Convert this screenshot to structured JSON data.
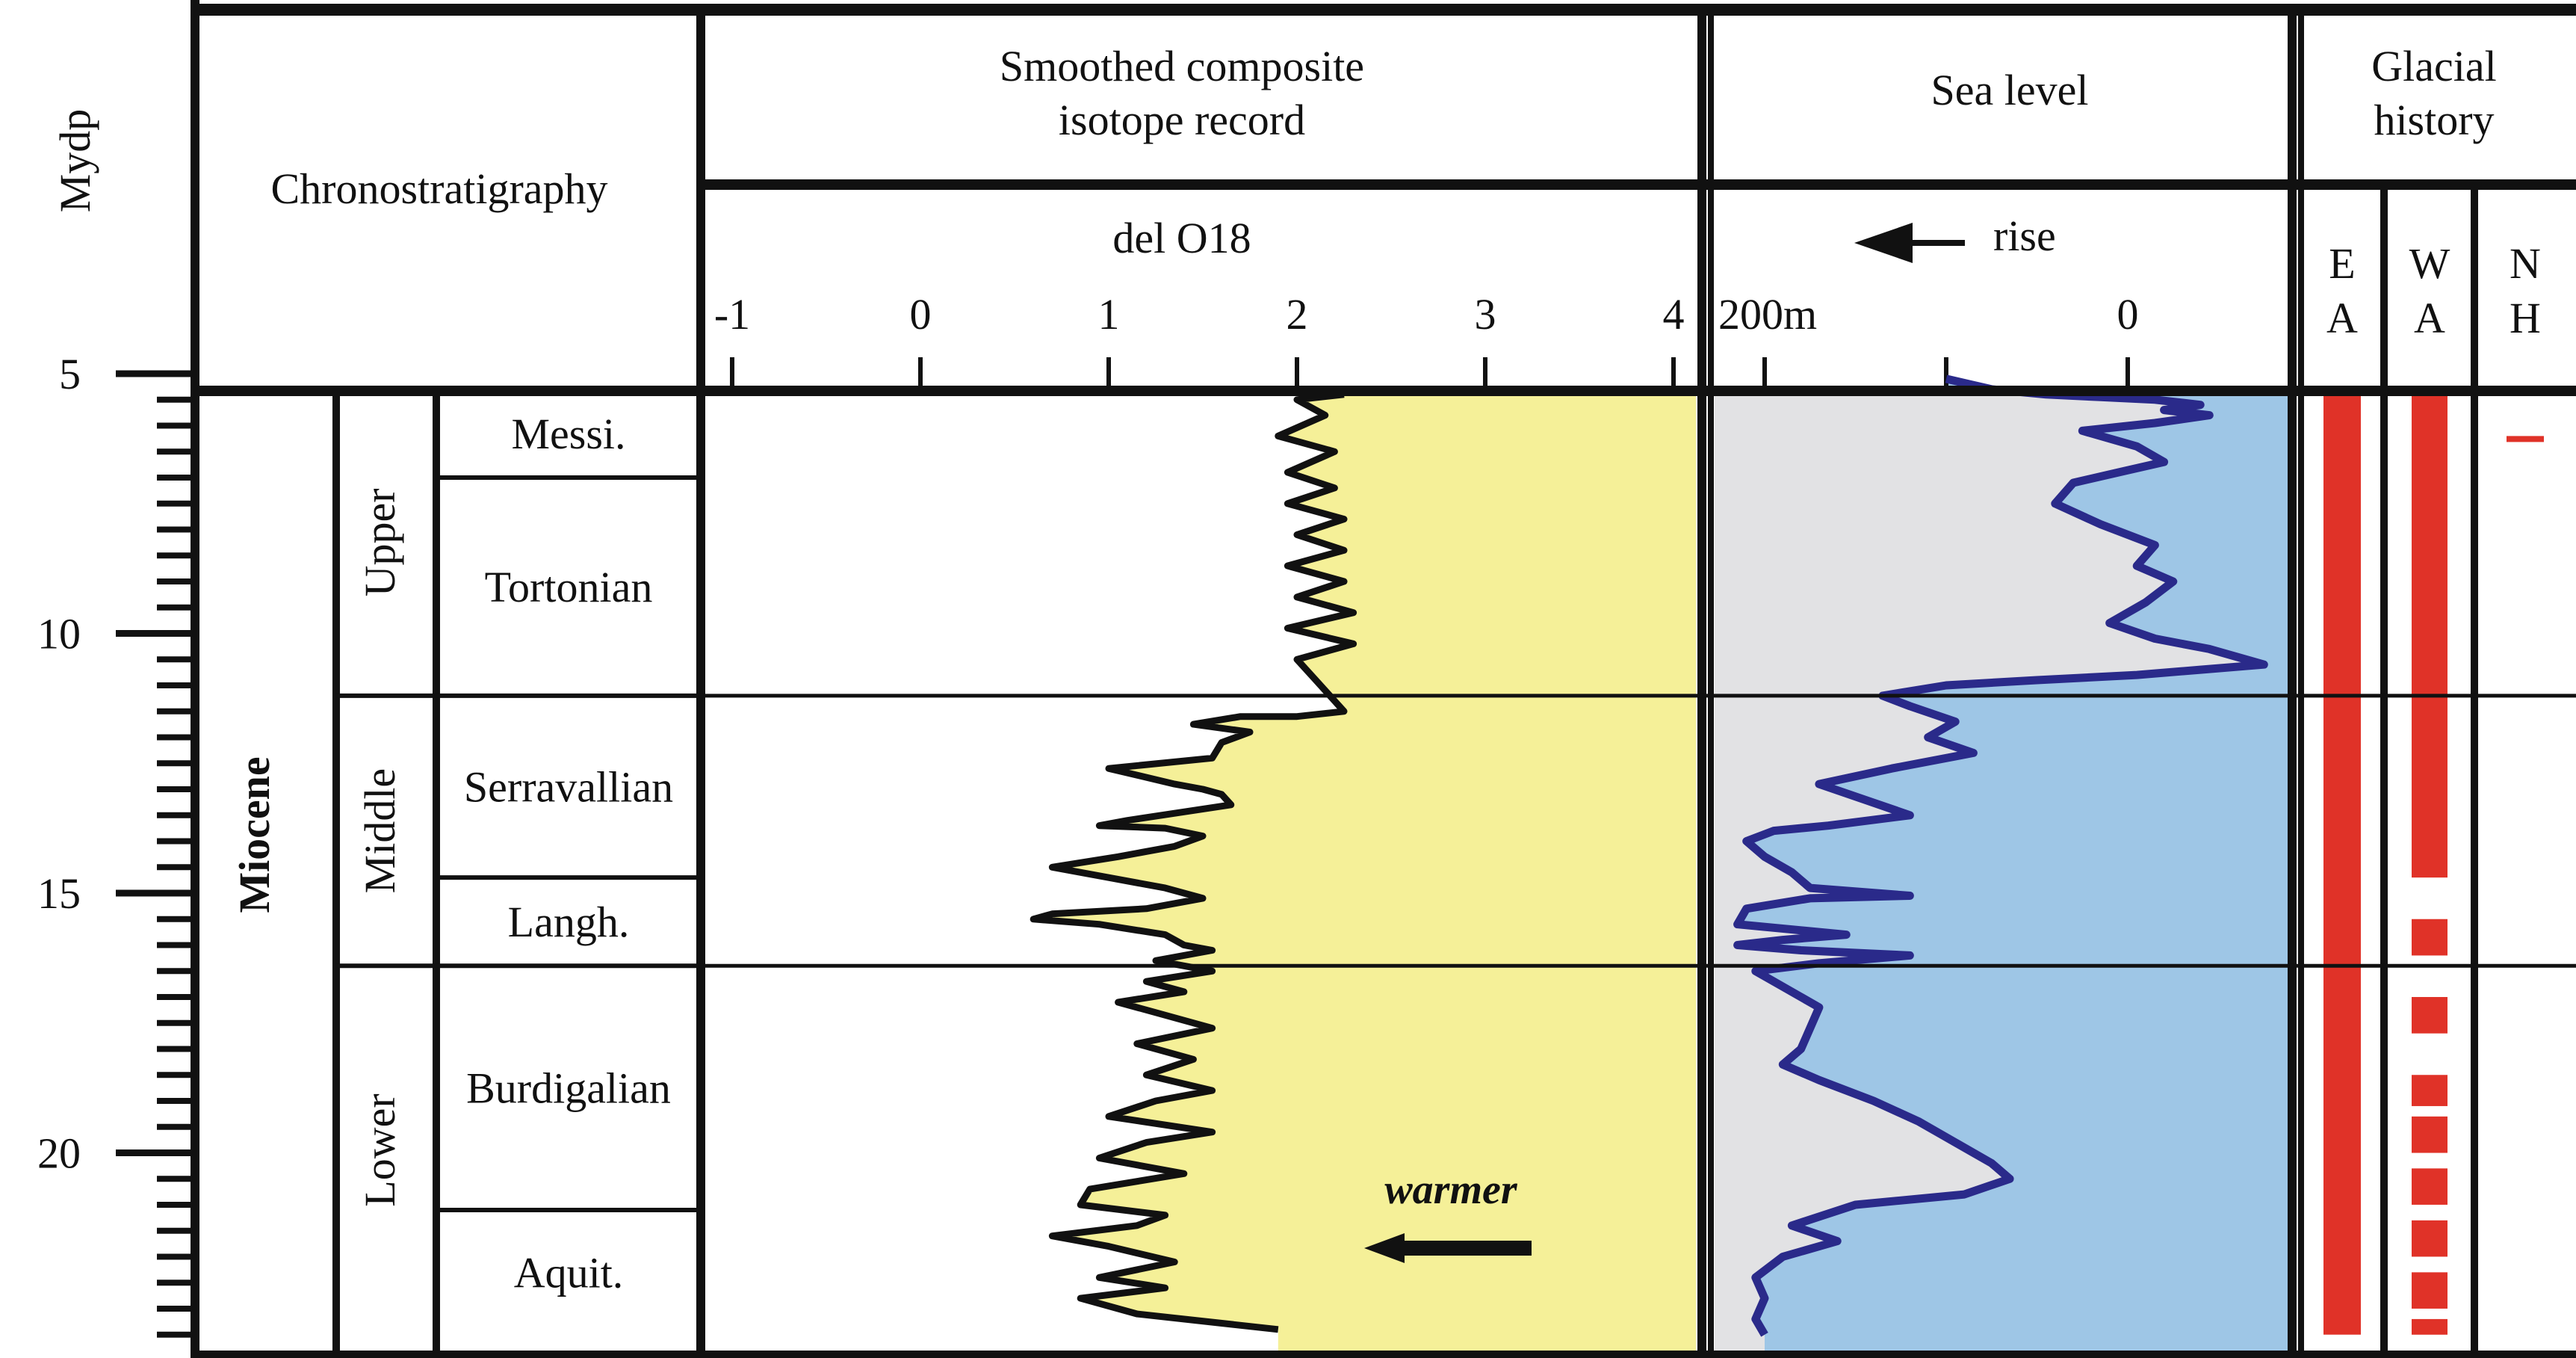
{
  "chart_data": {
    "type": "stratigraphic-composite",
    "y_axis": {
      "label": "Mydp",
      "ticks": [
        5,
        10,
        15,
        20
      ],
      "range": [
        5,
        23.5
      ]
    },
    "columns": {
      "chronostratigraphy": {
        "header": "Chronostratigraphy",
        "epoch": "Miocene",
        "subepochs": [
          {
            "name": "Upper",
            "from": 5.3,
            "to": 11.2
          },
          {
            "name": "Middle",
            "from": 11.2,
            "to": 16.4
          },
          {
            "name": "Lower",
            "from": 16.4,
            "to": 23.5
          }
        ],
        "stages": [
          {
            "name": "Messi.",
            "from": 5.3,
            "to": 7.0
          },
          {
            "name": "Tortonian",
            "from": 7.0,
            "to": 11.2
          },
          {
            "name": "Serravallian",
            "from": 11.2,
            "to": 14.7
          },
          {
            "name": "Langh.",
            "from": 14.7,
            "to": 16.4
          },
          {
            "name": "Burdigalian",
            "from": 16.4,
            "to": 21.1
          },
          {
            "name": "Aquit.",
            "from": 21.1,
            "to": 23.5
          }
        ]
      },
      "isotope": {
        "header_line1": "Smoothed composite",
        "header_line2": "isotope record",
        "axis_label": "del O18",
        "ticks": [
          -1,
          0,
          1,
          2,
          3,
          4
        ],
        "range": [
          -1,
          4
        ],
        "annotation": "warmer",
        "fill_color": "#f5f098",
        "series": [
          {
            "points": [
              [
                2.25,
                5.4
              ],
              [
                2.0,
                5.5
              ],
              [
                2.15,
                5.8
              ],
              [
                1.9,
                6.2
              ],
              [
                2.2,
                6.5
              ],
              [
                1.95,
                6.9
              ],
              [
                2.2,
                7.2
              ],
              [
                1.95,
                7.5
              ],
              [
                2.25,
                7.8
              ],
              [
                2.0,
                8.1
              ],
              [
                2.25,
                8.4
              ],
              [
                1.95,
                8.7
              ],
              [
                2.25,
                9.0
              ],
              [
                2.0,
                9.3
              ],
              [
                2.3,
                9.6
              ],
              [
                1.95,
                9.9
              ],
              [
                2.3,
                10.2
              ],
              [
                2.0,
                10.5
              ],
              [
                2.1,
                10.9
              ],
              [
                2.25,
                11.5
              ],
              [
                2.0,
                11.6
              ],
              [
                1.7,
                11.6
              ],
              [
                1.45,
                11.75
              ],
              [
                1.75,
                11.9
              ],
              [
                1.6,
                12.1
              ],
              [
                1.55,
                12.4
              ],
              [
                1.0,
                12.6
              ],
              [
                1.35,
                12.9
              ],
              [
                1.5,
                13.0
              ],
              [
                1.6,
                13.1
              ],
              [
                1.65,
                13.3
              ],
              [
                1.1,
                13.6
              ],
              [
                0.95,
                13.7
              ],
              [
                1.3,
                13.75
              ],
              [
                1.5,
                13.9
              ],
              [
                1.35,
                14.1
              ],
              [
                1.05,
                14.3
              ],
              [
                0.7,
                14.5
              ],
              [
                1.0,
                14.7
              ],
              [
                1.3,
                14.9
              ],
              [
                1.5,
                15.1
              ],
              [
                1.2,
                15.3
              ],
              [
                0.7,
                15.4
              ],
              [
                0.6,
                15.5
              ],
              [
                0.95,
                15.6
              ],
              [
                1.3,
                15.8
              ],
              [
                1.4,
                16.0
              ],
              [
                1.55,
                16.1
              ],
              [
                1.25,
                16.3
              ],
              [
                1.55,
                16.5
              ],
              [
                1.2,
                16.7
              ],
              [
                1.4,
                16.9
              ],
              [
                1.05,
                17.1
              ],
              [
                1.25,
                17.3
              ],
              [
                1.55,
                17.6
              ],
              [
                1.15,
                17.9
              ],
              [
                1.45,
                18.2
              ],
              [
                1.2,
                18.5
              ],
              [
                1.55,
                18.8
              ],
              [
                1.25,
                19.0
              ],
              [
                1.0,
                19.3
              ],
              [
                1.55,
                19.6
              ],
              [
                1.2,
                19.8
              ],
              [
                0.95,
                20.1
              ],
              [
                1.4,
                20.4
              ],
              [
                0.9,
                20.7
              ],
              [
                0.85,
                21.0
              ],
              [
                1.3,
                21.2
              ],
              [
                1.15,
                21.4
              ],
              [
                0.7,
                21.6
              ],
              [
                1.0,
                21.8
              ],
              [
                1.35,
                22.1
              ],
              [
                0.95,
                22.4
              ],
              [
                1.3,
                22.6
              ],
              [
                0.85,
                22.8
              ],
              [
                1.15,
                23.1
              ],
              [
                1.9,
                23.4
              ]
            ]
          }
        ]
      },
      "sea_level": {
        "header": "Sea level",
        "rise_label": "rise",
        "ticks": [
          "200m",
          "0"
        ],
        "range_m": [
          200,
          -100
        ],
        "fill_color": "#9ec6e6",
        "left_fill_color": "#e2e2e4",
        "line_color": "#2a2a8a",
        "series": [
          {
            "points": [
              [
                100,
                5.1
              ],
              [
                75,
                5.3
              ],
              [
                45,
                5.4
              ],
              [
                15,
                5.45
              ],
              [
                -15,
                5.5
              ],
              [
                -40,
                5.6
              ],
              [
                -20,
                5.7
              ],
              [
                -45,
                5.8
              ],
              [
                -15,
                5.95
              ],
              [
                25,
                6.1
              ],
              [
                -5,
                6.4
              ],
              [
                -20,
                6.7
              ],
              [
                5,
                6.9
              ],
              [
                30,
                7.1
              ],
              [
                40,
                7.5
              ],
              [
                15,
                7.9
              ],
              [
                -15,
                8.3
              ],
              [
                -5,
                8.7
              ],
              [
                -25,
                9.0
              ],
              [
                -10,
                9.4
              ],
              [
                10,
                9.8
              ],
              [
                -15,
                10.1
              ],
              [
                -45,
                10.3
              ],
              [
                -75,
                10.6
              ],
              [
                -40,
                10.7
              ],
              [
                -5,
                10.8
              ],
              [
                50,
                10.9
              ],
              [
                100,
                11.0
              ],
              [
                135,
                11.2
              ],
              [
                120,
                11.4
              ],
              [
                95,
                11.7
              ],
              [
                110,
                12.0
              ],
              [
                85,
                12.3
              ],
              [
                130,
                12.6
              ],
              [
                170,
                12.9
              ],
              [
                145,
                13.2
              ],
              [
                120,
                13.5
              ],
              [
                165,
                13.7
              ],
              [
                195,
                13.8
              ],
              [
                210,
                14.0
              ],
              [
                200,
                14.3
              ],
              [
                185,
                14.6
              ],
              [
                175,
                14.9
              ],
              [
                120,
                15.05
              ],
              [
                175,
                15.1
              ],
              [
                210,
                15.3
              ],
              [
                215,
                15.6
              ],
              [
                155,
                15.8
              ],
              [
                190,
                15.9
              ],
              [
                215,
                16.0
              ],
              [
                180,
                16.1
              ],
              [
                120,
                16.2
              ],
              [
                170,
                16.35
              ],
              [
                205,
                16.5
              ],
              [
                190,
                16.8
              ],
              [
                170,
                17.2
              ],
              [
                175,
                17.6
              ],
              [
                180,
                18.0
              ],
              [
                190,
                18.3
              ],
              [
                170,
                18.6
              ],
              [
                140,
                19.0
              ],
              [
                115,
                19.4
              ],
              [
                95,
                19.8
              ],
              [
                75,
                20.2
              ],
              [
                65,
                20.5
              ],
              [
                90,
                20.8
              ],
              [
                150,
                21.0
              ],
              [
                185,
                21.4
              ],
              [
                160,
                21.7
              ],
              [
                190,
                22.0
              ],
              [
                205,
                22.4
              ],
              [
                200,
                22.8
              ],
              [
                205,
                23.2
              ],
              [
                200,
                23.5
              ]
            ]
          }
        ]
      },
      "glacial_history": {
        "header_line1": "Glacial",
        "header_line2": "history",
        "bar_color": "#e03228",
        "tracks": [
          {
            "top": "E",
            "bottom": "A",
            "solid": [
              [
                5.3,
                23.5
              ]
            ],
            "dashed": []
          },
          {
            "top": "W",
            "bottom": "A",
            "solid": [
              [
                5.3,
                14.7
              ]
            ],
            "dashed": [
              [
                15.5,
                16.2
              ],
              [
                17.0,
                17.7
              ],
              [
                18.5,
                19.1
              ],
              [
                19.3,
                20.0
              ],
              [
                20.3,
                21.0
              ],
              [
                21.3,
                22.0
              ],
              [
                22.3,
                23.0
              ],
              [
                23.2,
                23.5
              ]
            ]
          },
          {
            "top": "N",
            "bottom": "H",
            "solid": [],
            "dashed": [
              [
                6.2,
                6.3
              ]
            ]
          }
        ]
      }
    }
  }
}
